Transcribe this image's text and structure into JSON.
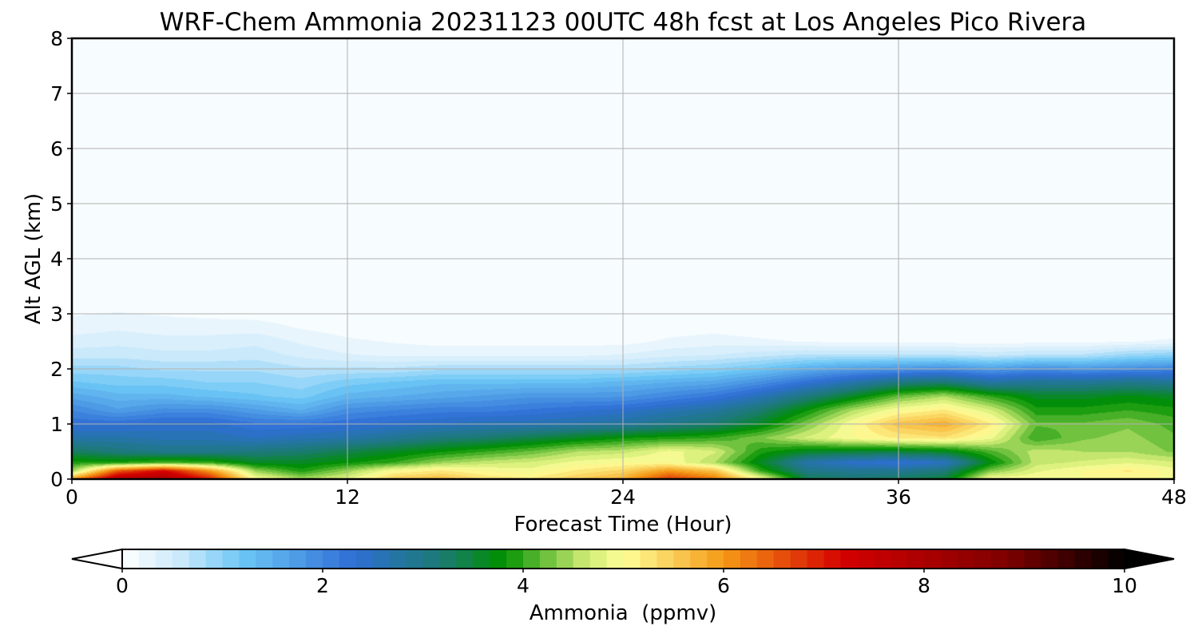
{
  "chart_data": {
    "type": "heatmap",
    "title": "WRF-Chem Ammonia  20231123 00UTC 48h fcst at Los Angeles Pico Rivera",
    "xlabel": "Forecast Time (Hour)",
    "ylabel": "Alt AGL (km)",
    "xlim": [
      0,
      48
    ],
    "ylim": [
      0,
      8
    ],
    "x_ticks": [
      0,
      12,
      24,
      36,
      48
    ],
    "y_ticks": [
      0,
      1,
      2,
      3,
      4,
      5,
      6,
      7,
      8
    ],
    "grid": true,
    "colorbar": {
      "label": "Ammonia  (ppmv)",
      "range": [
        0,
        10
      ],
      "ticks": [
        0,
        2,
        4,
        6,
        8,
        10
      ],
      "extend": "both",
      "stops": [
        {
          "v": 0,
          "color": "#ffffff"
        },
        {
          "v": 0.6,
          "color": "#c8e8fb"
        },
        {
          "v": 1.2,
          "color": "#6cc6f5"
        },
        {
          "v": 2.3,
          "color": "#2f6fd6"
        },
        {
          "v": 3.2,
          "color": "#1a7a70"
        },
        {
          "v": 3.8,
          "color": "#009000"
        },
        {
          "v": 4.6,
          "color": "#c8e870"
        },
        {
          "v": 5.0,
          "color": "#ffff99"
        },
        {
          "v": 6.0,
          "color": "#f59a16"
        },
        {
          "v": 7.2,
          "color": "#d40000"
        },
        {
          "v": 8.8,
          "color": "#800000"
        },
        {
          "v": 10.0,
          "color": "#000000"
        }
      ]
    },
    "x_hours": [
      0,
      2,
      4,
      6,
      8,
      10,
      12,
      14,
      16,
      18,
      20,
      22,
      24,
      26,
      28,
      30,
      32,
      34,
      36,
      38,
      40,
      42,
      44,
      46,
      48
    ],
    "z_km": [
      0,
      0.15,
      0.3,
      0.5,
      0.75,
      1.0,
      1.25,
      1.5,
      1.75,
      2.0,
      2.25,
      2.5,
      2.75,
      3.0,
      3.25,
      3.5,
      4.0,
      5.0,
      6.0,
      7.0,
      8.0
    ],
    "values": [
      [
        6.0,
        7.8,
        8.0,
        7.0,
        5.0,
        4.5,
        4.8,
        5.5,
        5.7,
        5.3,
        5.2,
        5.5,
        5.8,
        6.8,
        6.3,
        5.0,
        3.4,
        3.2,
        3.3,
        3.5,
        5.0,
        5.0,
        5.0,
        5.0,
        5.0
      ],
      [
        4.4,
        6.5,
        7.2,
        6.0,
        4.4,
        3.9,
        4.4,
        5.0,
        5.2,
        5.0,
        4.9,
        5.2,
        5.4,
        6.0,
        5.6,
        4.0,
        3.0,
        2.9,
        2.9,
        3.1,
        4.3,
        4.8,
        5.0,
        5.2,
        4.9
      ],
      [
        3.9,
        3.9,
        4.1,
        4.0,
        3.6,
        3.6,
        3.8,
        4.0,
        4.4,
        4.6,
        4.7,
        4.9,
        5.0,
        5.0,
        4.5,
        3.6,
        2.7,
        2.4,
        2.3,
        2.5,
        3.7,
        4.6,
        4.7,
        4.8,
        4.7
      ],
      [
        3.3,
        3.1,
        3.0,
        3.0,
        3.1,
        3.2,
        3.4,
        3.6,
        3.8,
        4.0,
        4.2,
        4.5,
        4.6,
        4.9,
        4.7,
        3.9,
        3.6,
        3.5,
        3.5,
        3.6,
        4.1,
        4.6,
        4.5,
        4.5,
        4.3
      ],
      [
        2.7,
        2.7,
        2.6,
        2.6,
        2.5,
        2.6,
        2.7,
        2.9,
        3.1,
        3.2,
        3.4,
        3.6,
        3.8,
        3.9,
        4.0,
        4.3,
        4.7,
        5.0,
        5.2,
        5.3,
        4.9,
        4.0,
        4.3,
        4.4,
        4.2
      ],
      [
        2.3,
        2.3,
        2.4,
        2.4,
        2.2,
        2.2,
        2.3,
        2.4,
        2.5,
        2.6,
        2.6,
        2.7,
        2.8,
        3.0,
        3.2,
        3.6,
        4.3,
        5.0,
        5.6,
        5.8,
        5.2,
        4.2,
        4.2,
        4.3,
        4.1
      ],
      [
        2.0,
        1.7,
        1.9,
        1.9,
        1.7,
        1.5,
        1.9,
        2.0,
        2.1,
        2.1,
        2.2,
        2.3,
        2.4,
        2.6,
        2.8,
        3.2,
        3.8,
        4.5,
        5.0,
        5.2,
        4.7,
        3.9,
        3.9,
        4.0,
        3.9
      ],
      [
        1.6,
        1.4,
        1.4,
        1.3,
        1.2,
        1.1,
        1.4,
        1.5,
        1.6,
        1.7,
        1.8,
        1.8,
        1.8,
        2.0,
        2.2,
        2.6,
        3.1,
        3.6,
        4.2,
        4.5,
        4.0,
        3.6,
        3.6,
        3.7,
        3.6
      ],
      [
        1.2,
        1.1,
        1.1,
        1.0,
        1.0,
        0.9,
        1.1,
        1.2,
        1.3,
        1.3,
        1.3,
        1.3,
        1.4,
        1.5,
        1.6,
        1.9,
        2.3,
        2.7,
        3.1,
        3.2,
        2.8,
        2.9,
        2.9,
        3.0,
        2.9
      ],
      [
        0.9,
        0.9,
        0.8,
        0.8,
        0.8,
        0.7,
        0.7,
        0.7,
        0.8,
        0.8,
        0.8,
        0.8,
        0.8,
        0.9,
        1.0,
        1.2,
        1.5,
        1.7,
        1.8,
        1.9,
        1.7,
        1.9,
        1.8,
        1.9,
        2.0
      ],
      [
        0.6,
        0.6,
        0.55,
        0.55,
        0.6,
        0.45,
        0.35,
        0.3,
        0.3,
        0.3,
        0.3,
        0.3,
        0.35,
        0.45,
        0.5,
        0.6,
        0.7,
        0.7,
        0.7,
        0.7,
        0.6,
        0.7,
        0.7,
        0.9,
        1.0
      ],
      [
        0.4,
        0.45,
        0.4,
        0.4,
        0.45,
        0.3,
        0.2,
        0.15,
        0.1,
        0.1,
        0.1,
        0.1,
        0.1,
        0.2,
        0.25,
        0.2,
        0.15,
        0.1,
        0.1,
        0.1,
        0.1,
        0.1,
        0.1,
        0.15,
        0.2
      ],
      [
        0.25,
        0.3,
        0.25,
        0.25,
        0.25,
        0.15,
        0.08,
        0.05,
        0.03,
        0.02,
        0.02,
        0.02,
        0.03,
        0.08,
        0.1,
        0.05,
        0.03,
        0.02,
        0.02,
        0.02,
        0.02,
        0.02,
        0.02,
        0.03,
        0.05
      ],
      [
        0.15,
        0.18,
        0.15,
        0.12,
        0.1,
        0.06,
        0.03,
        0.02,
        0.01,
        0.01,
        0.01,
        0.01,
        0.01,
        0.02,
        0.03,
        0.02,
        0.01,
        0.01,
        0.01,
        0.01,
        0.01,
        0.01,
        0.01,
        0.01,
        0.02
      ],
      [
        0.06,
        0.07,
        0.05,
        0.04,
        0.03,
        0.02,
        0.01,
        0.01,
        0,
        0,
        0,
        0,
        0,
        0.01,
        0.01,
        0,
        0,
        0,
        0,
        0,
        0,
        0,
        0,
        0,
        0
      ],
      [
        0.02,
        0.02,
        0.02,
        0.01,
        0.01,
        0.01,
        0,
        0,
        0,
        0,
        0,
        0,
        0,
        0,
        0,
        0,
        0,
        0,
        0,
        0,
        0,
        0,
        0,
        0,
        0
      ],
      [
        0,
        0,
        0,
        0,
        0,
        0,
        0,
        0,
        0,
        0,
        0,
        0,
        0,
        0,
        0,
        0,
        0,
        0,
        0,
        0,
        0,
        0,
        0,
        0,
        0
      ],
      [
        0,
        0,
        0,
        0,
        0,
        0,
        0,
        0,
        0,
        0,
        0,
        0,
        0,
        0,
        0,
        0,
        0,
        0,
        0,
        0,
        0,
        0,
        0,
        0,
        0
      ],
      [
        0,
        0,
        0,
        0,
        0,
        0,
        0,
        0,
        0,
        0,
        0,
        0,
        0,
        0,
        0,
        0,
        0,
        0,
        0,
        0,
        0,
        0,
        0,
        0,
        0
      ],
      [
        0,
        0,
        0,
        0,
        0,
        0,
        0,
        0,
        0,
        0,
        0,
        0,
        0,
        0,
        0,
        0,
        0,
        0,
        0,
        0,
        0,
        0,
        0,
        0,
        0
      ],
      [
        0,
        0,
        0,
        0,
        0,
        0,
        0,
        0,
        0,
        0,
        0,
        0,
        0,
        0,
        0,
        0,
        0,
        0,
        0,
        0,
        0,
        0,
        0,
        0,
        0
      ]
    ]
  }
}
